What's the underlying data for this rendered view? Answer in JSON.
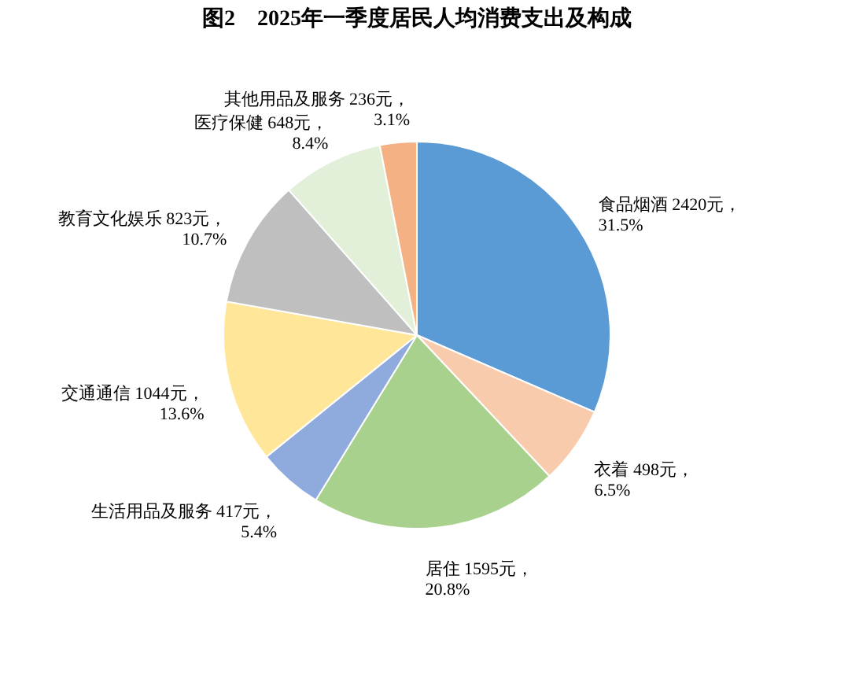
{
  "chart_data": {
    "type": "pie",
    "title": "图2　2025年一季度居民人均消费支出及构成",
    "categories": [
      "食品烟酒",
      "衣着",
      "居住",
      "生活用品及服务",
      "交通通信",
      "教育文化娱乐",
      "医疗保健",
      "其他用品及服务"
    ],
    "values": [
      2420,
      498,
      1595,
      417,
      1044,
      823,
      648,
      236
    ],
    "colors": [
      "#5b9bd5",
      "#f8cbad",
      "#a9d18e",
      "#8faadc",
      "#ffe699",
      "#bfbfbf",
      "#e2f0d9",
      "#f4b183"
    ],
    "value_labels": [
      "2420元，\n31.5%",
      "498元，\n6.5%",
      "1595元，\n20.8%",
      "417元，\n5.4%",
      "1044元，\n13.6%",
      "823元，\n10.7%",
      "648元，\n8.4%",
      "236元，\n3.1%"
    ]
  }
}
